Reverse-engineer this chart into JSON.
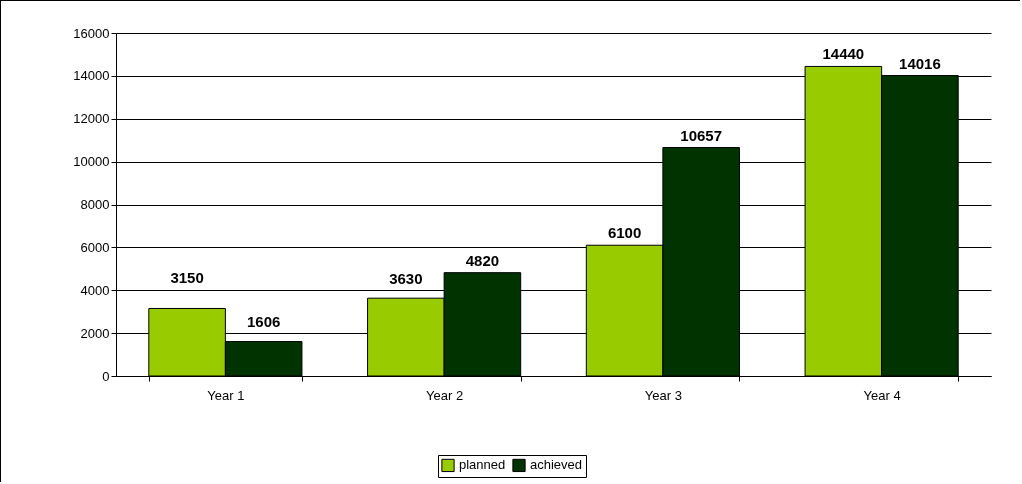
{
  "chart_data": {
    "type": "bar",
    "categories": [
      "Year 1",
      "Year 2",
      "Year 3",
      "Year 4"
    ],
    "series": [
      {
        "name": "planned",
        "color": "#99cc00",
        "values": [
          3150,
          3630,
          6100,
          14440
        ]
      },
      {
        "name": "achieved",
        "color": "#003300",
        "values": [
          1606,
          4820,
          10657,
          14016
        ]
      }
    ],
    "ylim": [
      0,
      16000
    ],
    "yticks": [
      0,
      2000,
      4000,
      6000,
      8000,
      10000,
      12000,
      14000,
      16000
    ],
    "grid": "y",
    "legend": "bottom",
    "data_labels": true
  }
}
